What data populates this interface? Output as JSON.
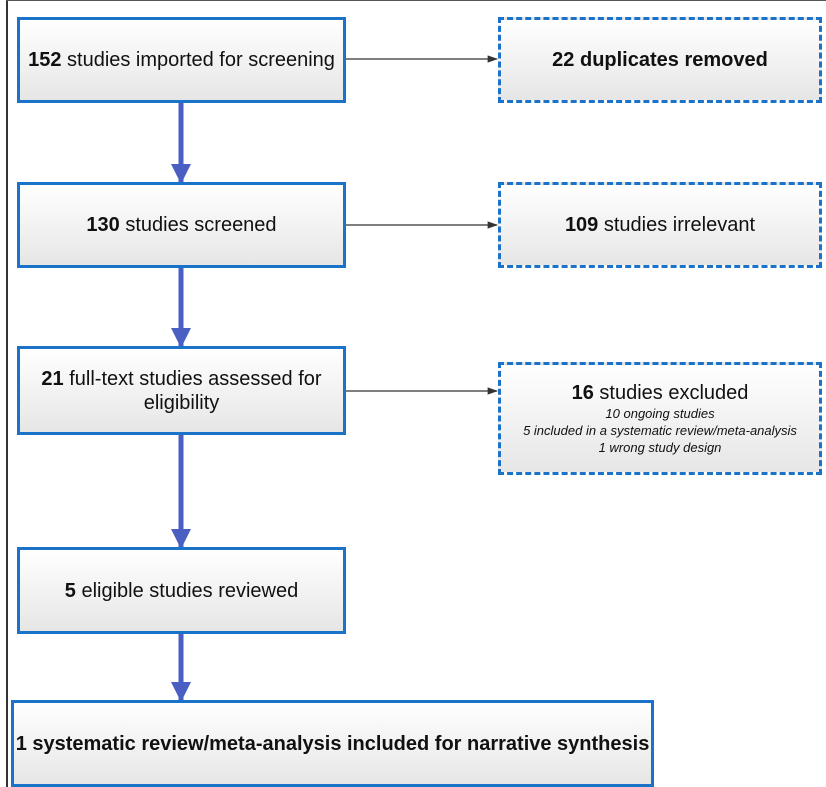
{
  "boxes": {
    "imported": {
      "count": "152",
      "text": " studies imported for screening"
    },
    "duplicates": {
      "count": "22",
      "text": " duplicates removed"
    },
    "screened": {
      "count": "130",
      "text": " studies screened"
    },
    "irrelevant": {
      "count": "109",
      "text": " studies irrelevant"
    },
    "fulltext": {
      "count": "21",
      "text_line1": " full-text studies assessed for",
      "text_line2": "eligibility"
    },
    "excluded": {
      "count": "16",
      "text": " studies excluded",
      "reasons": [
        "10 ongoing studies",
        "5 included in a systematic review/meta-analysis",
        "1 wrong study design"
      ]
    },
    "eligible": {
      "count": "5",
      "text": " eligible studies reviewed"
    },
    "included": {
      "count": "1",
      "text": " systematic review/meta-analysis included for narrative synthesis"
    }
  },
  "colors": {
    "border": "#1a73c9",
    "down_arrow": "#4a5fc1",
    "side_arrow": "#333333"
  }
}
